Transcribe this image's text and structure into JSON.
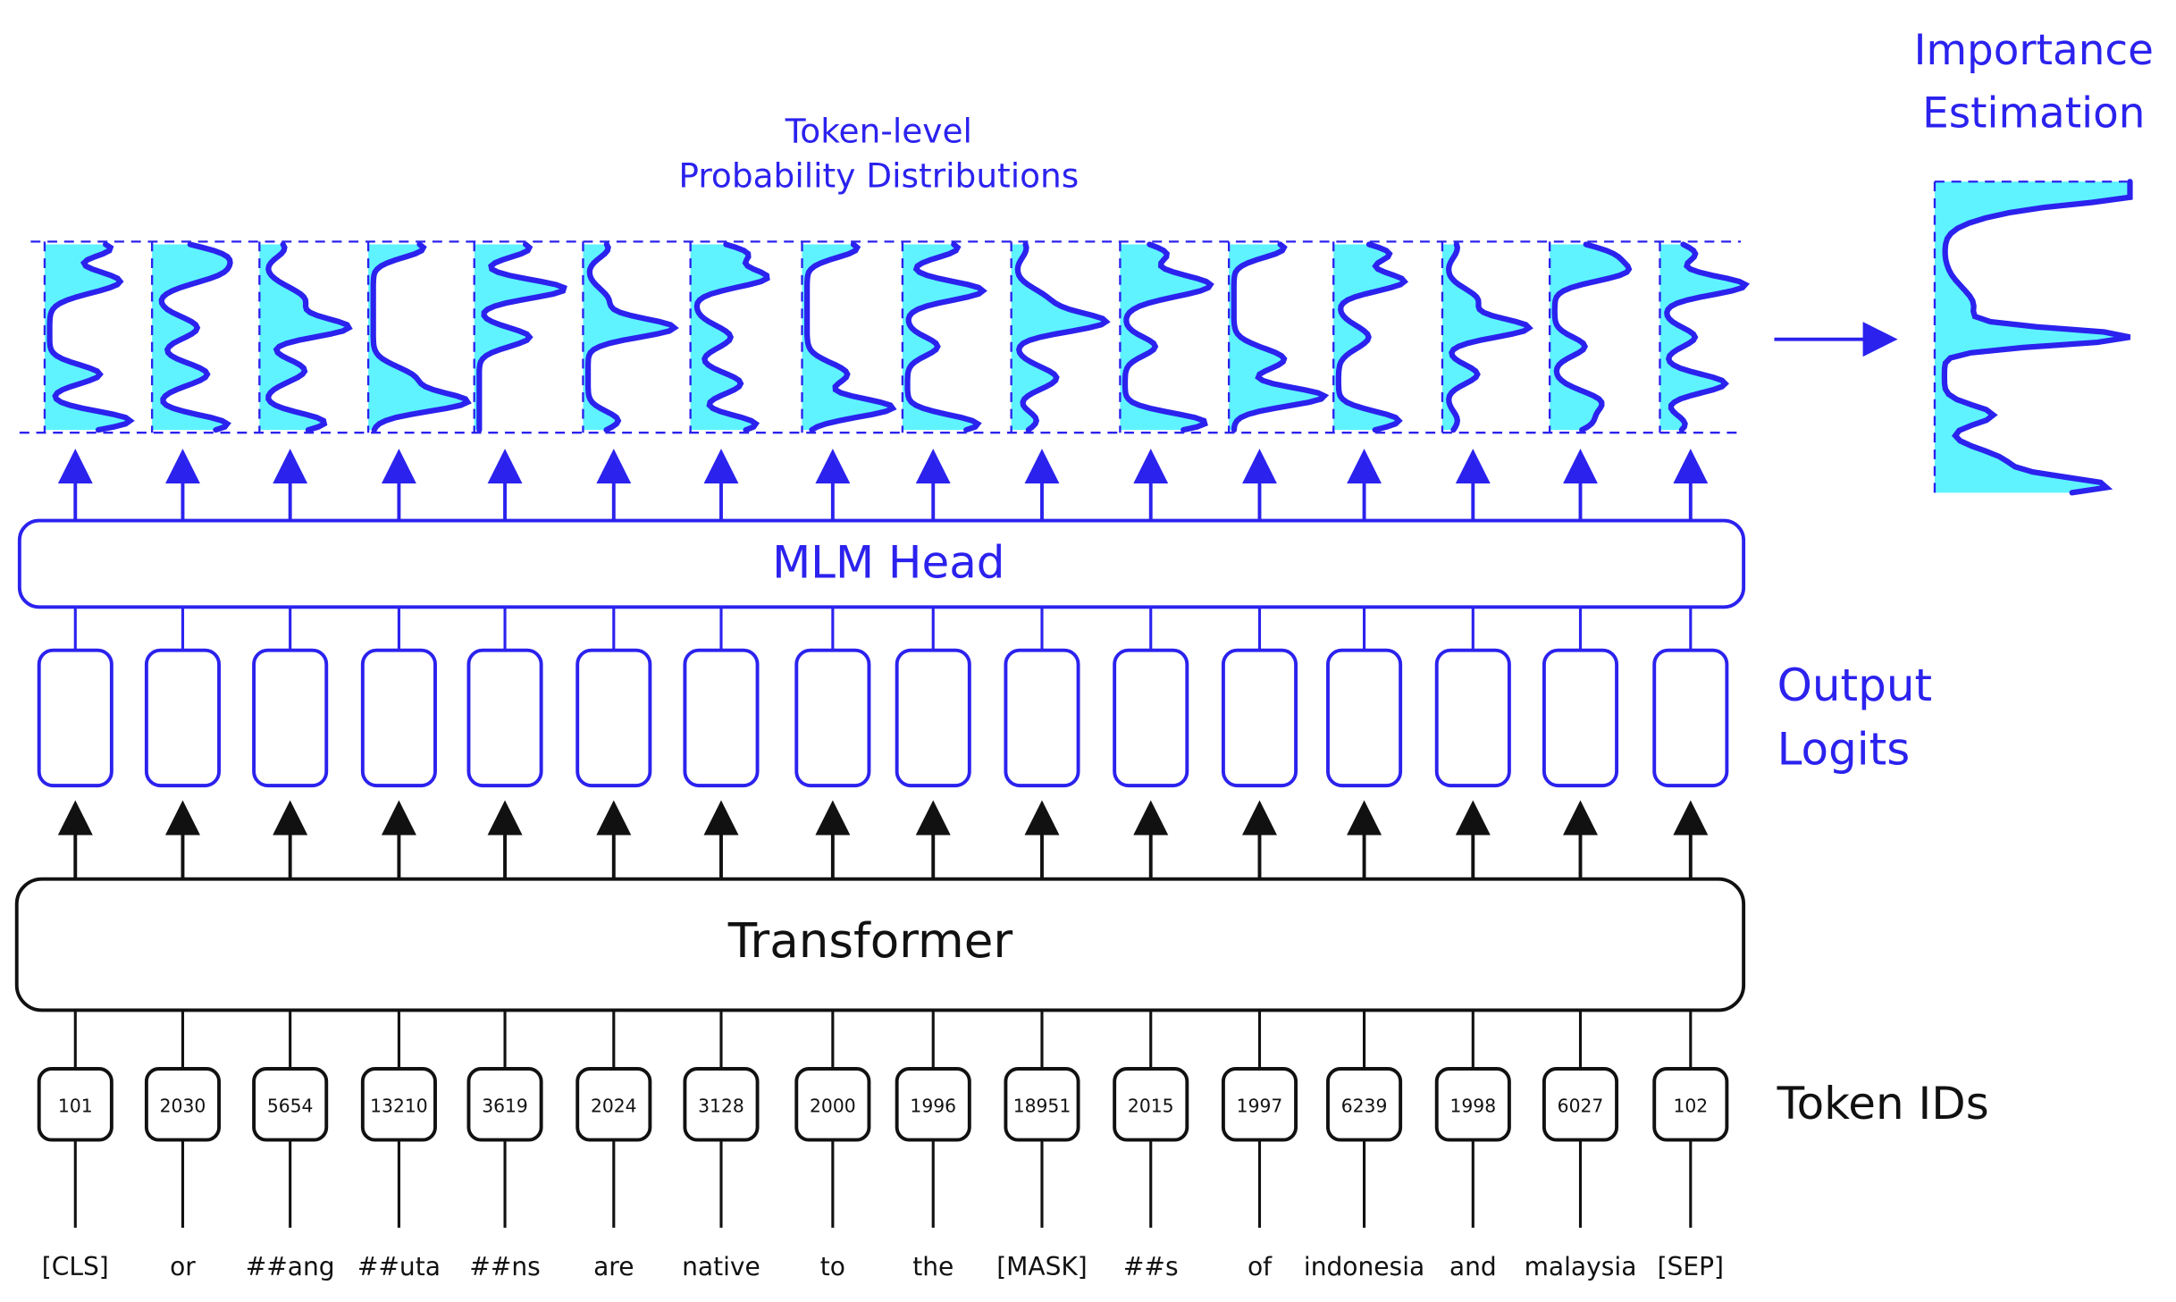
{
  "labels": {
    "distributions_title_line1": "Token-level",
    "distributions_title_line2": "Probability Distributions",
    "importance_line1": "Importance",
    "importance_line2": "Estimation",
    "mlm_head": "MLM Head",
    "output_logits_line1": "Output",
    "output_logits_line2": "Logits",
    "transformer": "Transformer",
    "token_ids": "Token IDs"
  },
  "tokens": [
    "[CLS]",
    "or",
    "##ang",
    "##uta",
    "##ns",
    "are",
    "native",
    "to",
    "the",
    "[MASK]",
    "##s",
    "of",
    "indonesia",
    "and",
    "malaysia",
    "[SEP]"
  ],
  "token_ids": [
    "101",
    "2030",
    "5654",
    "13210",
    "3619",
    "2024",
    "3128",
    "2000",
    "1996",
    "18951",
    "2015",
    "1997",
    "6239",
    "1998",
    "6027",
    "102"
  ],
  "colors": {
    "accent_blue": "#2b22ee",
    "fill_cyan": "#5ff3ff",
    "ink": "#111111"
  }
}
